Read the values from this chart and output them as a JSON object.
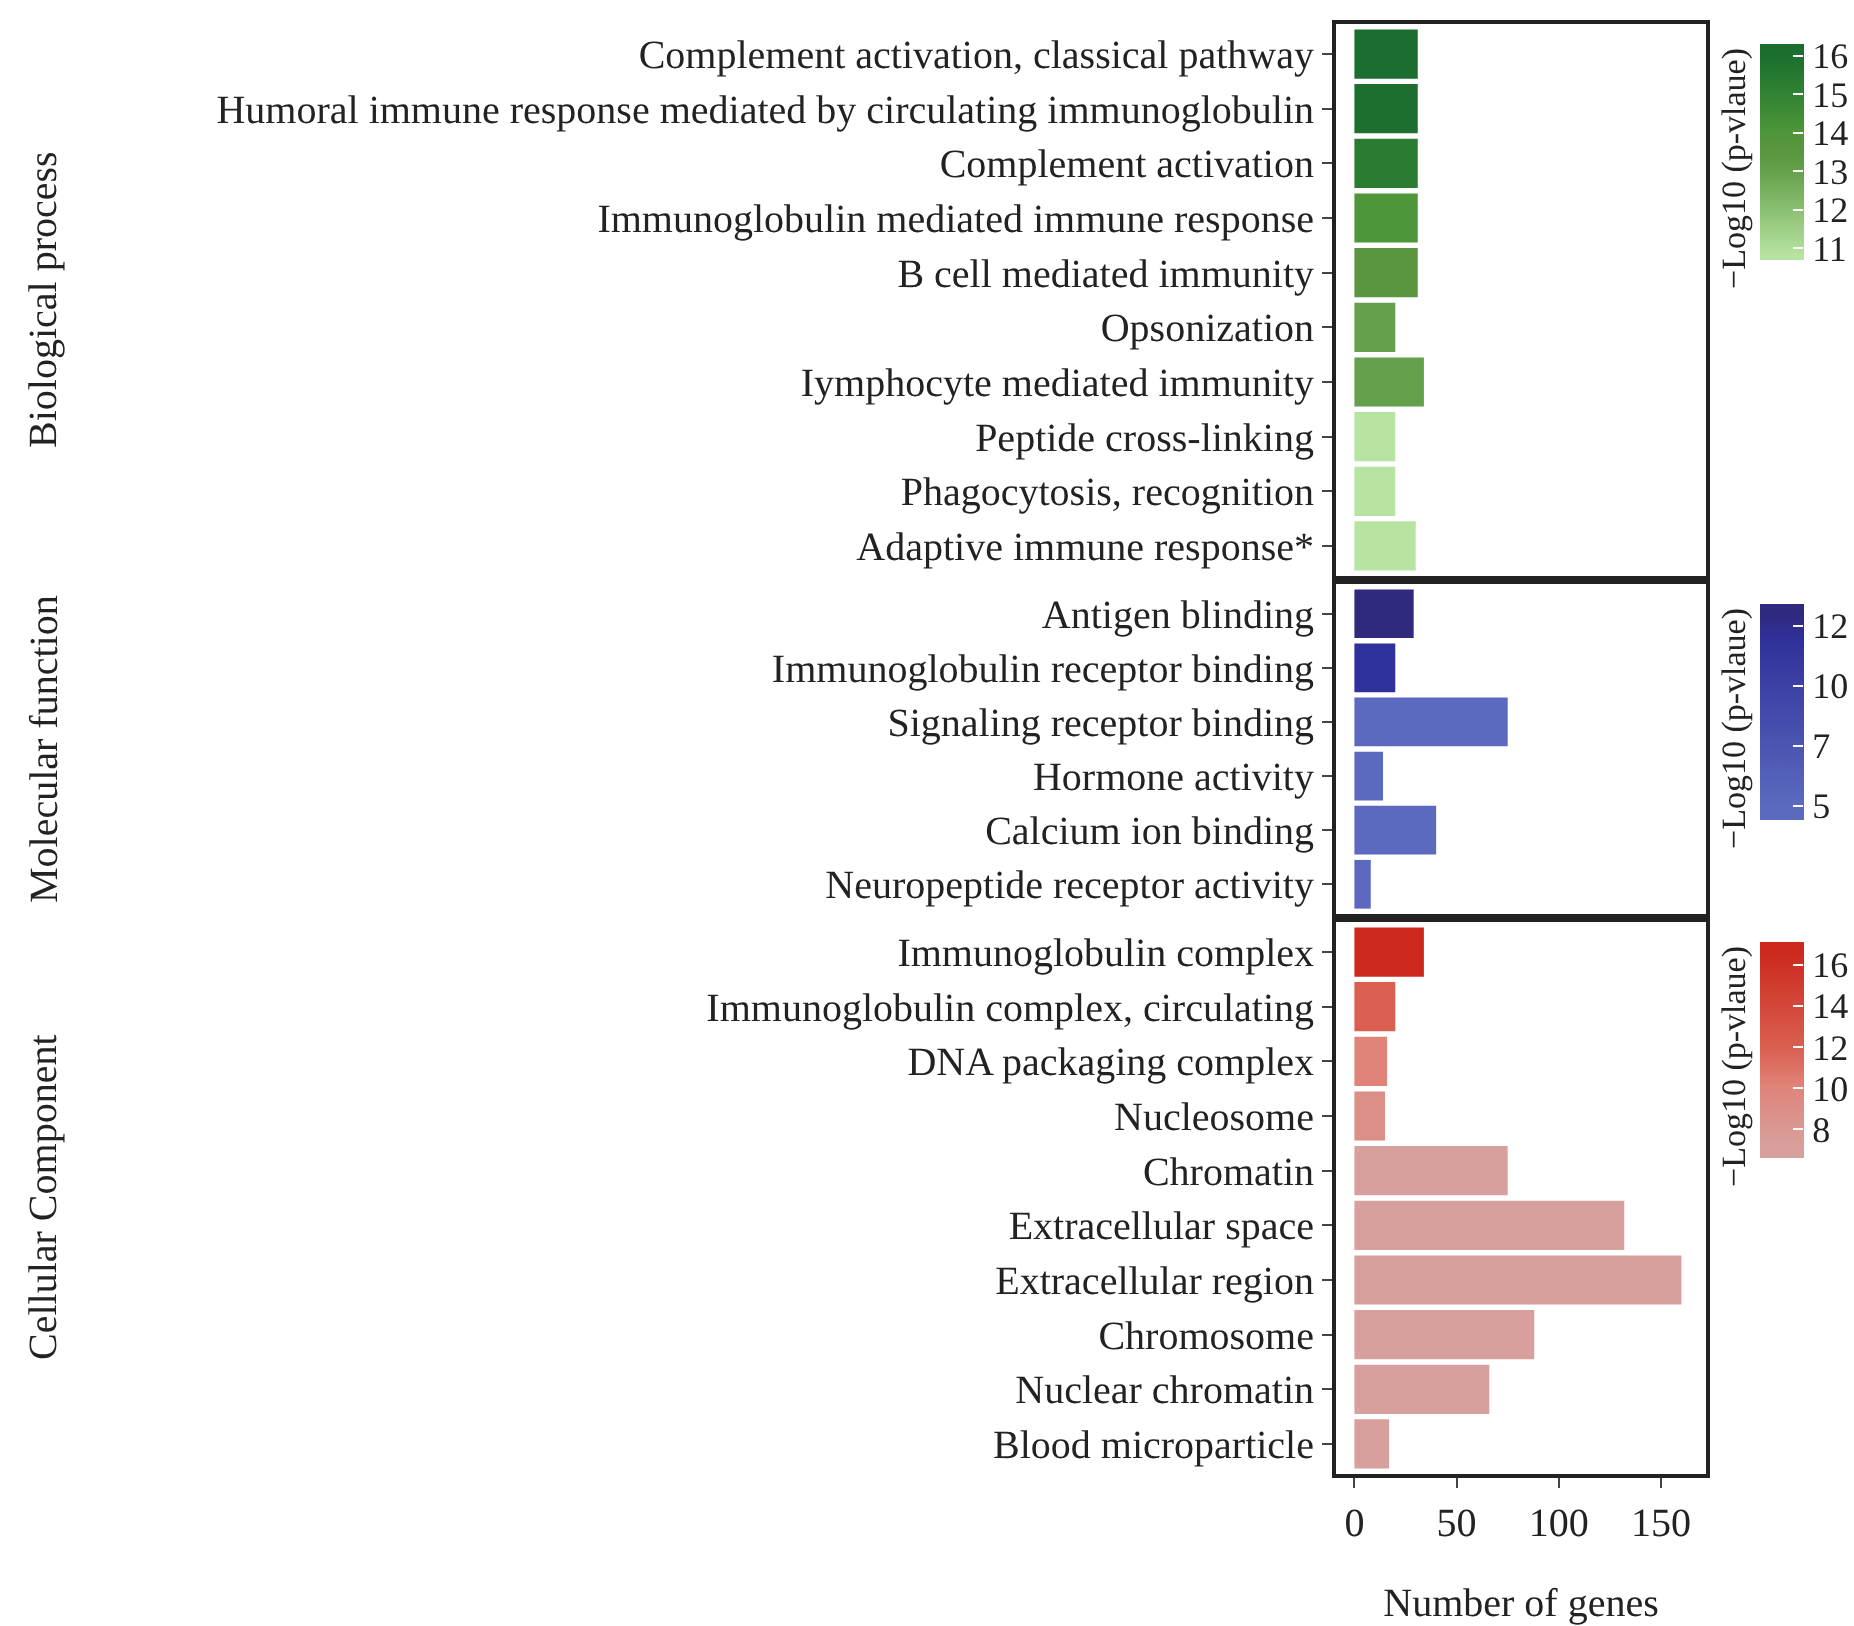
{
  "chart_data": [
    {
      "type": "bar",
      "orientation": "horizontal",
      "ylabel": "Biological process",
      "categories": [
        "Complement activation, classical pathway",
        "Humoral immune response mediated by circulating immunoglobulin",
        "Complement activation",
        "Immunoglobulin mediated immune response",
        "B cell mediated immunity",
        "Opsonization",
        "Iymphocyte mediated immunity",
        "Peptide cross-linking",
        "Phagocytosis, recognition",
        "Adaptive immune response*"
      ],
      "values": [
        31,
        31,
        31,
        31,
        31,
        20,
        34,
        20,
        20,
        30
      ],
      "cvalues": [
        16.1,
        16,
        15.3,
        14,
        13.5,
        13,
        13,
        10.8,
        10.8,
        10.8
      ],
      "colors": [
        "#1b6e2f",
        "#1c6f2f",
        "#2a7d30",
        "#4e963a",
        "#5a963f",
        "#67a04d",
        "#65a04c",
        "#b7e4a0",
        "#b7e4a0",
        "#b7e4a0"
      ],
      "clabel": "−Log10 (p-vlaue)",
      "clim": [
        10.7,
        16.3
      ],
      "cticks": [
        11,
        12,
        13,
        14,
        15,
        16
      ],
      "xlim": [
        -9,
        172
      ],
      "xticks": [
        0,
        50,
        100,
        150
      ],
      "tick_labels": "y"
    },
    {
      "type": "bar",
      "orientation": "horizontal",
      "ylabel": "Molecular function",
      "categories": [
        "Antigen blinding",
        "Immunoglobulin receptor binding",
        "Signaling receptor binding",
        "Hormone activity",
        "Calcium ion binding",
        "Neuropeptide receptor activity"
      ],
      "values": [
        29,
        20,
        75,
        14,
        40,
        8
      ],
      "cvalues": [
        13,
        12,
        5,
        5,
        5,
        5
      ],
      "colors": [
        "#2f2a7e",
        "#30309a",
        "#5b6abf",
        "#5b6abf",
        "#5b6abf",
        "#5b6abf"
      ],
      "clabel": "−Log10 (p-vlaue)",
      "clim": [
        4.4,
        13.4
      ],
      "cticks": [
        {
          "value": 5,
          "label": "5"
        },
        {
          "value": 7.5,
          "label": "7"
        },
        {
          "value": 10,
          "label": "10"
        },
        {
          "value": 12.5,
          "label": "12"
        }
      ],
      "xlim": [
        -9,
        172
      ],
      "xticks": [
        0,
        50,
        100,
        150
      ],
      "tick_labels": "y"
    },
    {
      "type": "bar",
      "orientation": "horizontal",
      "ylabel": "Cellular Component",
      "xlabel": "Number of genes",
      "categories": [
        "Immunoglobulin complex",
        "Immunoglobulin complex, circulating",
        "DNA packaging complex",
        "Nucleosome",
        "Chromatin",
        "Extracellular space",
        "Extracellular region",
        "Chromosome",
        "Nuclear chromatin",
        "Blood microparticle"
      ],
      "values": [
        34,
        20,
        16,
        15,
        75,
        132,
        160,
        88,
        66,
        17
      ],
      "cvalues": [
        16.5,
        12,
        10,
        9,
        7,
        7,
        7,
        7,
        7,
        7
      ],
      "colors": [
        "#cc2a1f",
        "#da5f50",
        "#e0847a",
        "#dc8f87",
        "#d8a09d",
        "#d8a09d",
        "#d8a09d",
        "#d8a09d",
        "#d8a09d",
        "#d8a09d"
      ],
      "clabel": "−Log10 (p-vlaue)",
      "clim": [
        6.6,
        17.1
      ],
      "cticks": [
        8,
        10,
        12,
        14,
        16
      ],
      "xlim": [
        -9,
        172
      ],
      "xticks": [
        0,
        50,
        100,
        150
      ]
    }
  ]
}
